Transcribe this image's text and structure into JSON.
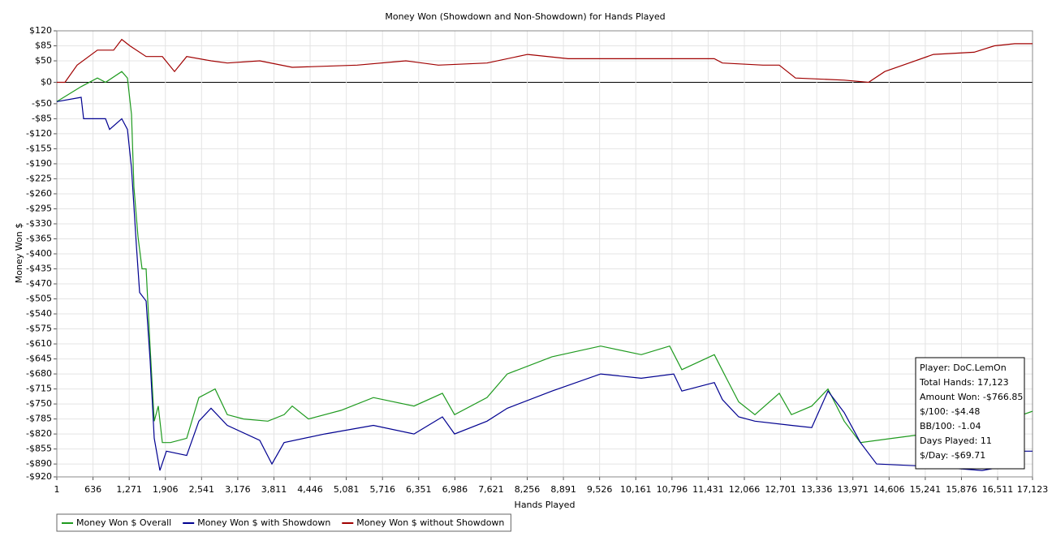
{
  "chart_data": {
    "type": "line",
    "title": "Money Won (Showdown and Non-Showdown) for Hands Played",
    "xlabel": "Hands Played",
    "ylabel": "Money Won $",
    "xlim": [
      1,
      17123
    ],
    "ylim": [
      -920,
      120
    ],
    "grid": true,
    "legend": "bottom-left",
    "xticks": [
      1,
      636,
      {
        "value": 1271,
        "label": "1,271"
      },
      {
        "value": 1906,
        "label": "1,906"
      },
      {
        "value": 2541,
        "label": "2,541"
      },
      {
        "value": 3176,
        "label": "3,176"
      },
      {
        "value": 3811,
        "label": "3,811"
      },
      {
        "value": 4446,
        "label": "4,446"
      },
      {
        "value": 5081,
        "label": "5,081"
      },
      {
        "value": 5716,
        "label": "5,716"
      },
      {
        "value": 6351,
        "label": "6,351"
      },
      {
        "value": 6986,
        "label": "6,986"
      },
      {
        "value": 7621,
        "label": "7,621"
      },
      {
        "value": 8256,
        "label": "8,256"
      },
      {
        "value": 8891,
        "label": "8,891"
      },
      {
        "value": 9526,
        "label": "9,526"
      },
      {
        "value": 10161,
        "label": "10,161"
      },
      {
        "value": 10796,
        "label": "10,796"
      },
      {
        "value": 11431,
        "label": "11,431"
      },
      {
        "value": 12066,
        "label": "12,066"
      },
      {
        "value": 12701,
        "label": "12,701"
      },
      {
        "value": 13336,
        "label": "13,336"
      },
      {
        "value": 13971,
        "label": "13,971"
      },
      {
        "value": 14606,
        "label": "14,606"
      },
      {
        "value": 15241,
        "label": "15,241"
      },
      {
        "value": 15876,
        "label": "15,876"
      },
      {
        "value": 16511,
        "label": "16,511"
      },
      {
        "value": 17123,
        "label": "17,123"
      }
    ],
    "yticks": [
      {
        "value": 120,
        "label": "$120"
      },
      {
        "value": 85,
        "label": "$85"
      },
      {
        "value": 50,
        "label": "$50"
      },
      {
        "value": 0,
        "label": "$0"
      },
      {
        "value": -50,
        "label": "-$50"
      },
      {
        "value": -85,
        "label": "-$85"
      },
      {
        "value": -120,
        "label": "-$120"
      },
      {
        "value": -155,
        "label": "-$155"
      },
      {
        "value": -190,
        "label": "-$190"
      },
      {
        "value": -225,
        "label": "-$225"
      },
      {
        "value": -260,
        "label": "-$260"
      },
      {
        "value": -295,
        "label": "-$295"
      },
      {
        "value": -330,
        "label": "-$330"
      },
      {
        "value": -365,
        "label": "-$365"
      },
      {
        "value": -400,
        "label": "-$400"
      },
      {
        "value": -435,
        "label": "-$435"
      },
      {
        "value": -470,
        "label": "-$470"
      },
      {
        "value": -505,
        "label": "-$505"
      },
      {
        "value": -540,
        "label": "-$540"
      },
      {
        "value": -575,
        "label": "-$575"
      },
      {
        "value": -610,
        "label": "-$610"
      },
      {
        "value": -645,
        "label": "-$645"
      },
      {
        "value": -680,
        "label": "-$680"
      },
      {
        "value": -715,
        "label": "-$715"
      },
      {
        "value": -750,
        "label": "-$750"
      },
      {
        "value": -785,
        "label": "-$785"
      },
      {
        "value": -820,
        "label": "-$820"
      },
      {
        "value": -855,
        "label": "-$855"
      },
      {
        "value": -890,
        "label": "-$890"
      },
      {
        "value": -920,
        "label": "-$920"
      }
    ],
    "series": [
      {
        "name": "Money Won $ Overall",
        "color": "#1e9a1e",
        "x": [
          1,
          428,
          713,
          856,
          1141,
          1240,
          1311,
          1354,
          1425,
          1497,
          1568,
          1639,
          1710,
          1782,
          1853,
          1995,
          2280,
          2494,
          2779,
          2992,
          3277,
          3704,
          3989,
          4132,
          4417,
          4986,
          5556,
          6268,
          6767,
          6981,
          7550,
          7906,
          8690,
          9545,
          10257,
          10755,
          10969,
          11539,
          11752,
          11966,
          12251,
          12679,
          12892,
          13248,
          13533,
          13818,
          14103,
          14672,
          15242,
          16097,
          16666,
          16951,
          17123
        ],
        "values": [
          -45,
          -10,
          10,
          0,
          25,
          10,
          -75,
          -245,
          -360,
          -435,
          -435,
          -620,
          -790,
          -755,
          -840,
          -840,
          -830,
          -735,
          -715,
          -775,
          -785,
          -790,
          -775,
          -755,
          -785,
          -765,
          -735,
          -755,
          -725,
          -775,
          -735,
          -680,
          -640,
          -615,
          -635,
          -615,
          -670,
          -635,
          -690,
          -745,
          -775,
          -725,
          -775,
          -755,
          -715,
          -790,
          -840,
          -830,
          -820,
          -830,
          -810,
          -775,
          -767
        ]
      },
      {
        "name": "Money Won $ with Showdown",
        "color": "#000090",
        "x": [
          1,
          428,
          471,
          856,
          927,
          1141,
          1240,
          1311,
          1397,
          1454,
          1568,
          1639,
          1710,
          1810,
          1924,
          2280,
          2494,
          2707,
          2992,
          3562,
          3776,
          3989,
          4702,
          5556,
          6268,
          6767,
          6981,
          7550,
          7906,
          8690,
          9545,
          10257,
          10827,
          10969,
          11539,
          11681,
          11966,
          12251,
          12892,
          13248,
          13533,
          13818,
          14103,
          14387,
          15242,
          16239,
          16666,
          16980,
          17123
        ],
        "values": [
          -45,
          -35,
          -85,
          -85,
          -110,
          -85,
          -110,
          -200,
          -380,
          -490,
          -510,
          -650,
          -830,
          -905,
          -860,
          -870,
          -790,
          -760,
          -800,
          -835,
          -890,
          -840,
          -820,
          -800,
          -820,
          -780,
          -820,
          -790,
          -760,
          -720,
          -680,
          -690,
          -680,
          -720,
          -700,
          -740,
          -780,
          -790,
          -800,
          -805,
          -720,
          -770,
          -840,
          -890,
          -895,
          -905,
          -895,
          -860,
          -860
        ]
      },
      {
        "name": "Money Won $ without Showdown",
        "color": "#a00000",
        "x": [
          1,
          143,
          357,
          713,
          998,
          1141,
          1283,
          1568,
          1853,
          2066,
          2280,
          2707,
          2992,
          3562,
          4132,
          5271,
          6126,
          6696,
          7550,
          8263,
          8975,
          9829,
          10827,
          11539,
          11681,
          12394,
          12679,
          12963,
          13818,
          14245,
          14530,
          14957,
          15384,
          16097,
          16453,
          16809,
          17123
        ],
        "values": [
          0,
          0,
          40,
          75,
          75,
          100,
          85,
          60,
          60,
          25,
          60,
          50,
          45,
          50,
          35,
          40,
          50,
          40,
          45,
          65,
          55,
          55,
          55,
          55,
          45,
          40,
          40,
          10,
          5,
          0,
          25,
          45,
          65,
          70,
          85,
          90,
          90
        ]
      }
    ],
    "annotations": [
      "Player: DoC.LemOn",
      "Total Hands: 17,123",
      "Amount Won: -$766.85",
      "$/100: -$4.48",
      "BB/100: -1.04",
      "Days Played: 11",
      "$/Day: -$69.71"
    ]
  }
}
